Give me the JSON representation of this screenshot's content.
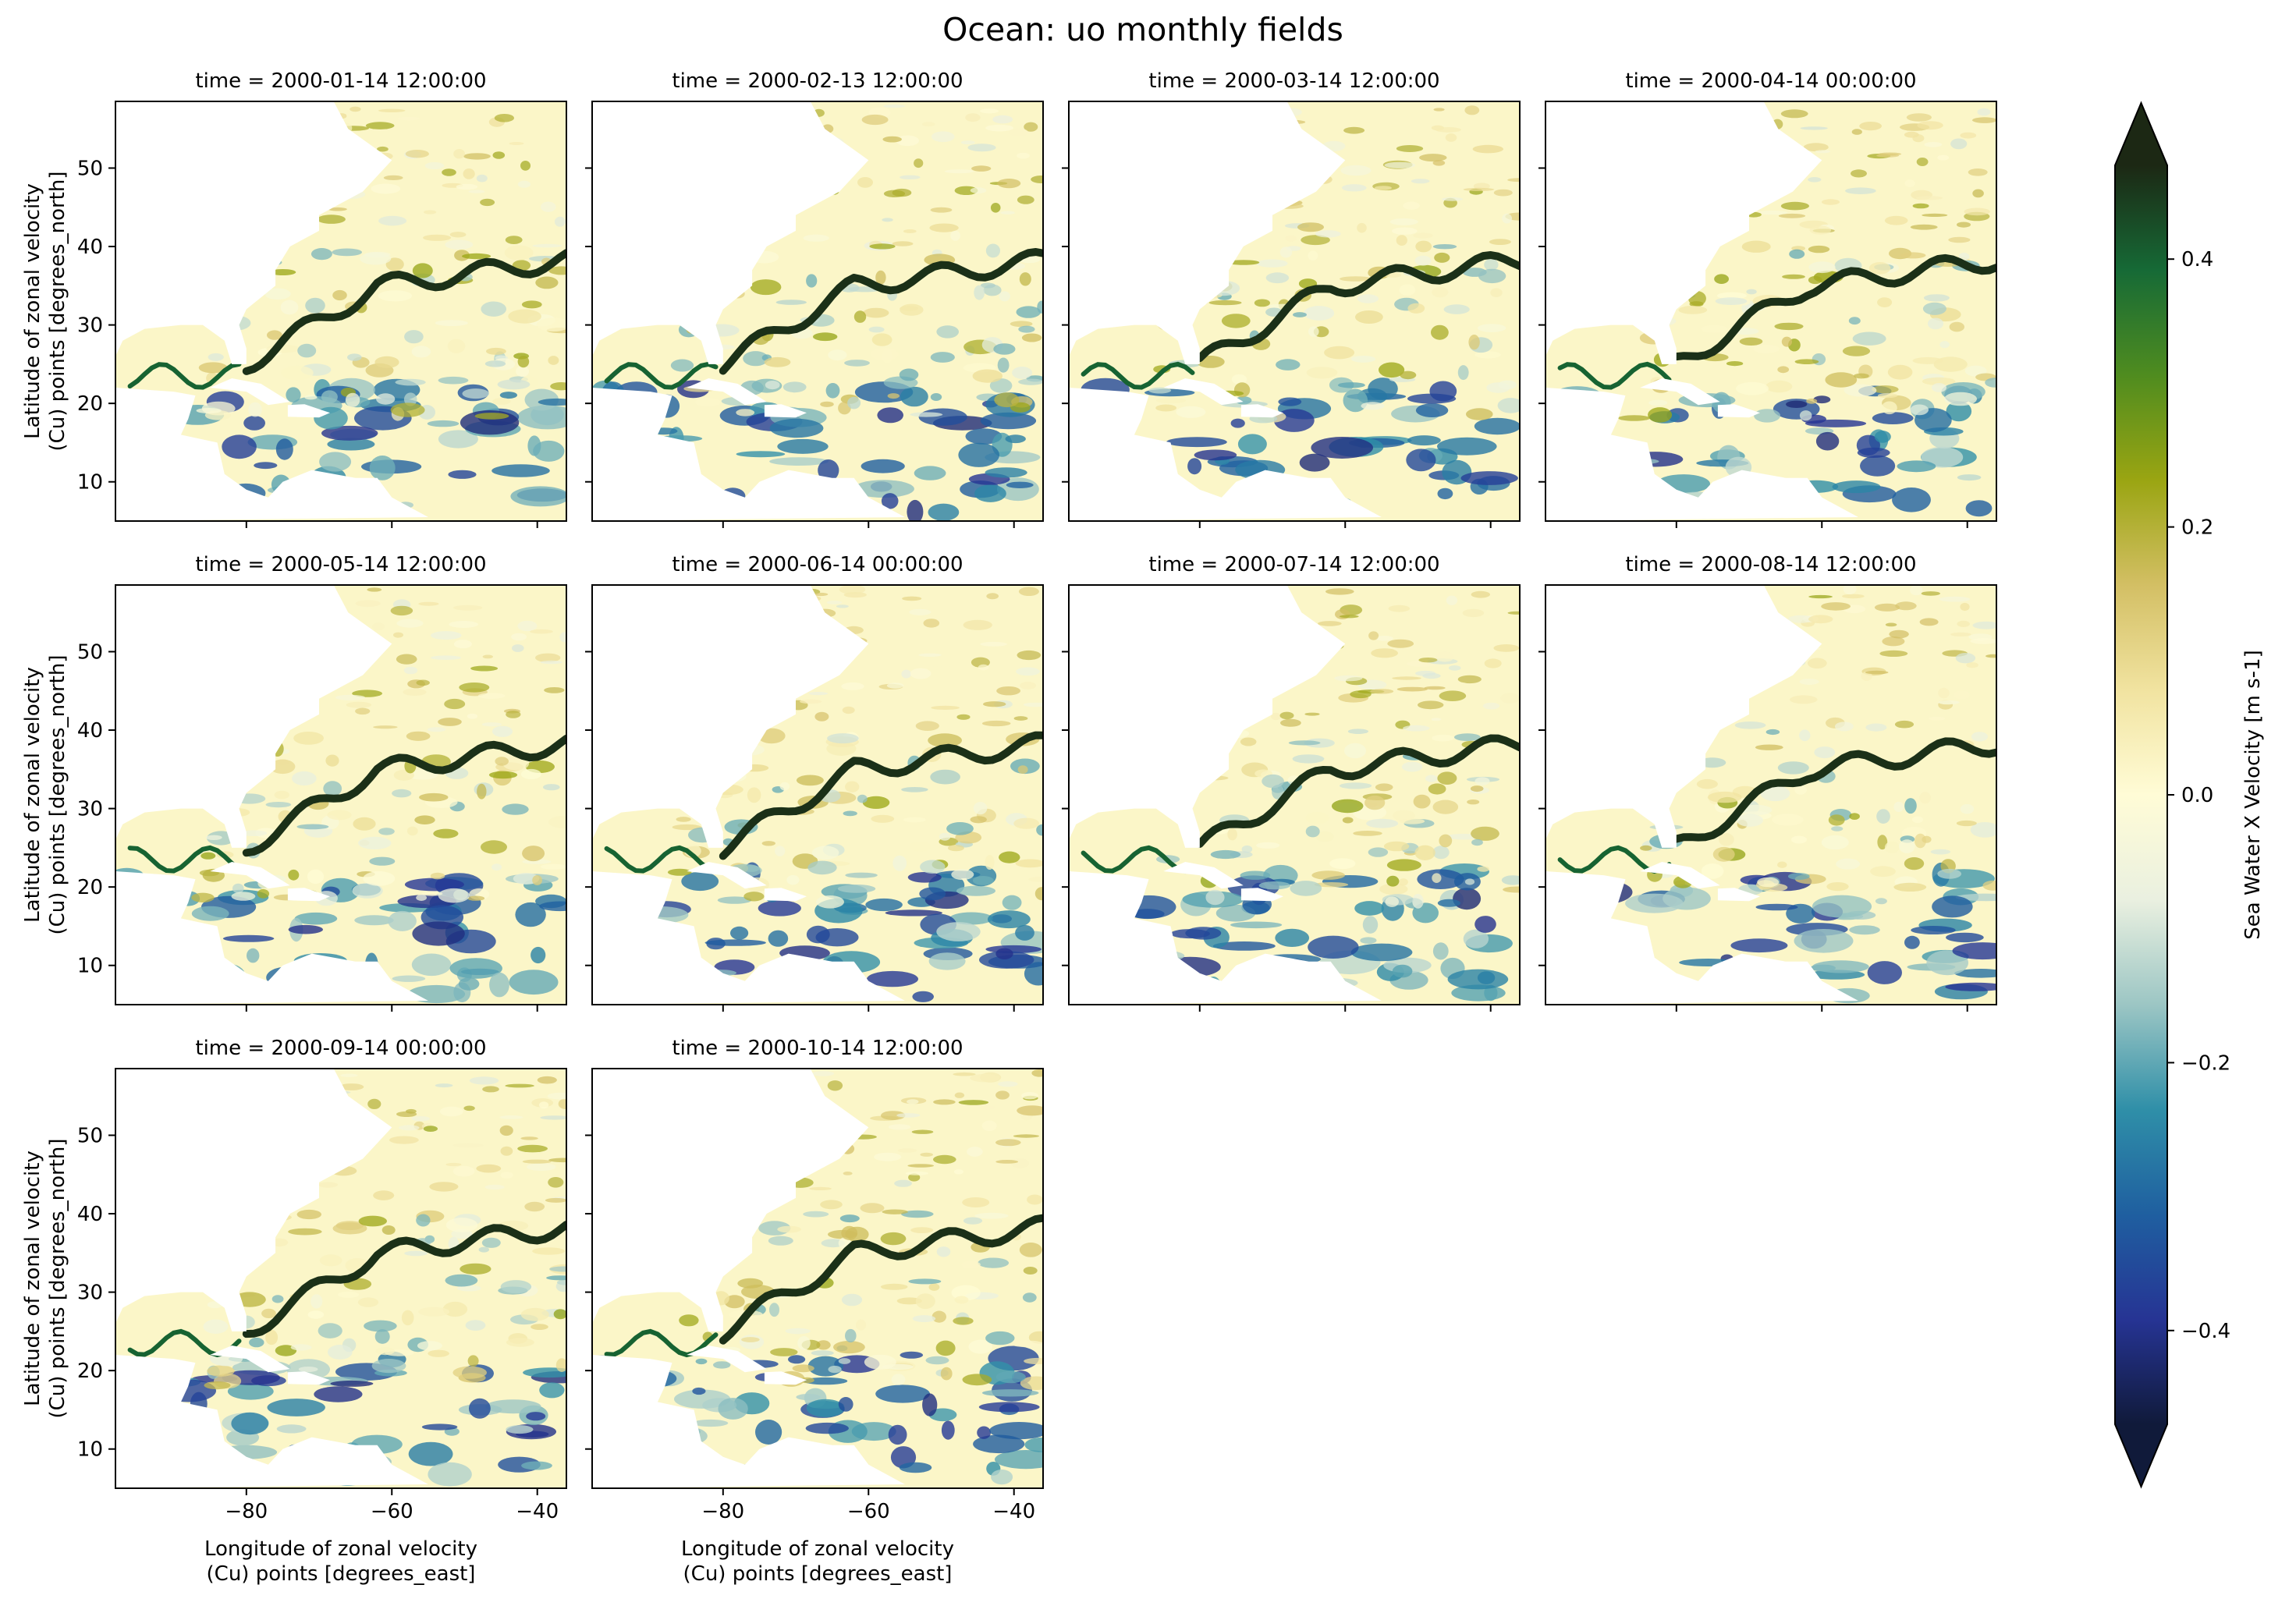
{
  "figure": {
    "title": "Ocean: uo monthly fields"
  },
  "chart_data": {
    "type": "heatmap",
    "title": "Ocean: uo monthly fields",
    "layout": "faceted grid, 3 rows x 4 columns, 10 panels",
    "xlabel": "Longitude of zonal velocity\n(Cu) points [degrees_east]",
    "ylabel": "Latitude of zonal velocity\n(Cu) points [degrees_north]",
    "xlim": [
      -98,
      -36
    ],
    "ylim": [
      5,
      58.5
    ],
    "xticks": [
      -80,
      -60,
      -40
    ],
    "yticks": [
      10,
      20,
      30,
      40,
      50
    ],
    "panels": [
      {
        "title": "time = 2000-01-14 12:00:00"
      },
      {
        "title": "time = 2000-02-13 12:00:00"
      },
      {
        "title": "time = 2000-03-14 12:00:00"
      },
      {
        "title": "time = 2000-04-14 00:00:00"
      },
      {
        "title": "time = 2000-05-14 12:00:00"
      },
      {
        "title": "time = 2000-06-14 00:00:00"
      },
      {
        "title": "time = 2000-07-14 12:00:00"
      },
      {
        "title": "time = 2000-08-14 12:00:00"
      },
      {
        "title": "time = 2000-09-14 00:00:00"
      },
      {
        "title": "time = 2000-10-14 12:00:00"
      }
    ],
    "colorbar": {
      "label": "Sea Water X Velocity [m s-1]",
      "range": [
        -0.47,
        0.47
      ],
      "ticks": [
        0.4,
        0.2,
        0.0,
        -0.2,
        -0.4
      ],
      "extend": "both",
      "colormap": [
        "#101a3a",
        "#263494",
        "#1f5fa0",
        "#2f8fa8",
        "#9cc6c4",
        "#eaf0e0",
        "#fffcd6",
        "#f1e3a0",
        "#d3bf64",
        "#9aa512",
        "#4f8c1f",
        "#166a36",
        "#1c2814"
      ]
    }
  }
}
